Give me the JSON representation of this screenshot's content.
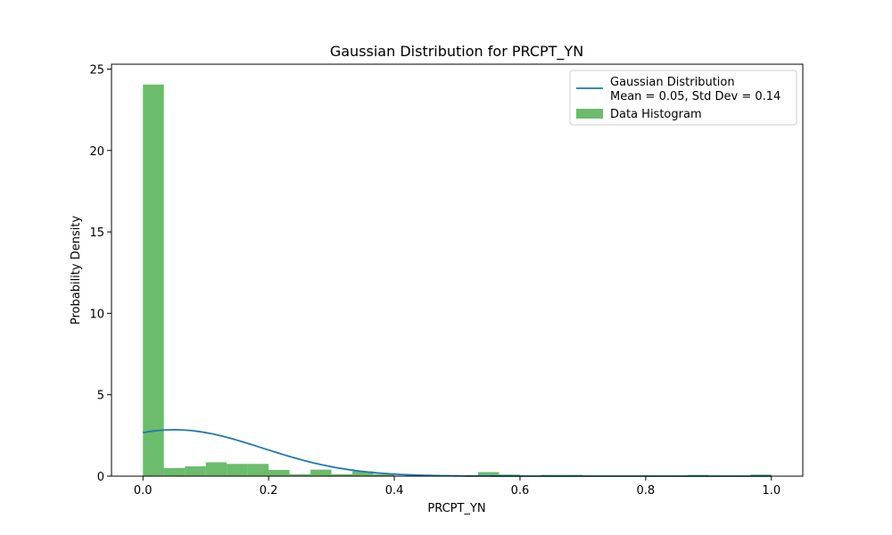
{
  "chart_data": {
    "type": "bar",
    "title": "Gaussian Distribution for PRCPT_YN",
    "xlabel": "PRCPT_YN",
    "ylabel": "Probability Density",
    "xlim": [
      -0.05,
      1.05
    ],
    "ylim": [
      0,
      25.3
    ],
    "xticks": [
      0.0,
      0.2,
      0.4,
      0.6,
      0.8,
      1.0
    ],
    "xtick_labels": [
      "0.0",
      "0.2",
      "0.4",
      "0.6",
      "0.8",
      "1.0"
    ],
    "yticks": [
      0,
      5,
      10,
      15,
      20,
      25
    ],
    "ytick_labels": [
      "0",
      "5",
      "10",
      "15",
      "20",
      "25"
    ],
    "grid": false,
    "legend_position": "top-right",
    "histogram": {
      "name": "Data Histogram",
      "color": "#2ca02c",
      "opacity": 0.7,
      "bin_edges": [
        0.0,
        0.0333,
        0.0667,
        0.1,
        0.1333,
        0.1667,
        0.2,
        0.2333,
        0.2667,
        0.3,
        0.3333,
        0.3667,
        0.4,
        0.4333,
        0.4667,
        0.5,
        0.5333,
        0.5667,
        0.6,
        0.6333,
        0.6667,
        0.7,
        0.7333,
        0.7667,
        0.8,
        0.8333,
        0.8667,
        0.9,
        0.9333,
        0.9667,
        1.0
      ],
      "densities": [
        24.05,
        0.5,
        0.6,
        0.85,
        0.75,
        0.75,
        0.38,
        0.12,
        0.4,
        0.12,
        0.3,
        0.12,
        0.03,
        0.03,
        0.03,
        0.03,
        0.25,
        0.1,
        0.03,
        0.08,
        0.08,
        0.03,
        0.03,
        0.03,
        0.03,
        0.03,
        0.08,
        0.03,
        0.03,
        0.1
      ]
    },
    "gaussian": {
      "name_line1": "Gaussian Distribution",
      "name_line2": "Mean = 0.05, Std Dev = 0.14",
      "mean": 0.05,
      "std": 0.14,
      "x_range": [
        0.0,
        1.0
      ],
      "color": "#1f77b4"
    }
  }
}
